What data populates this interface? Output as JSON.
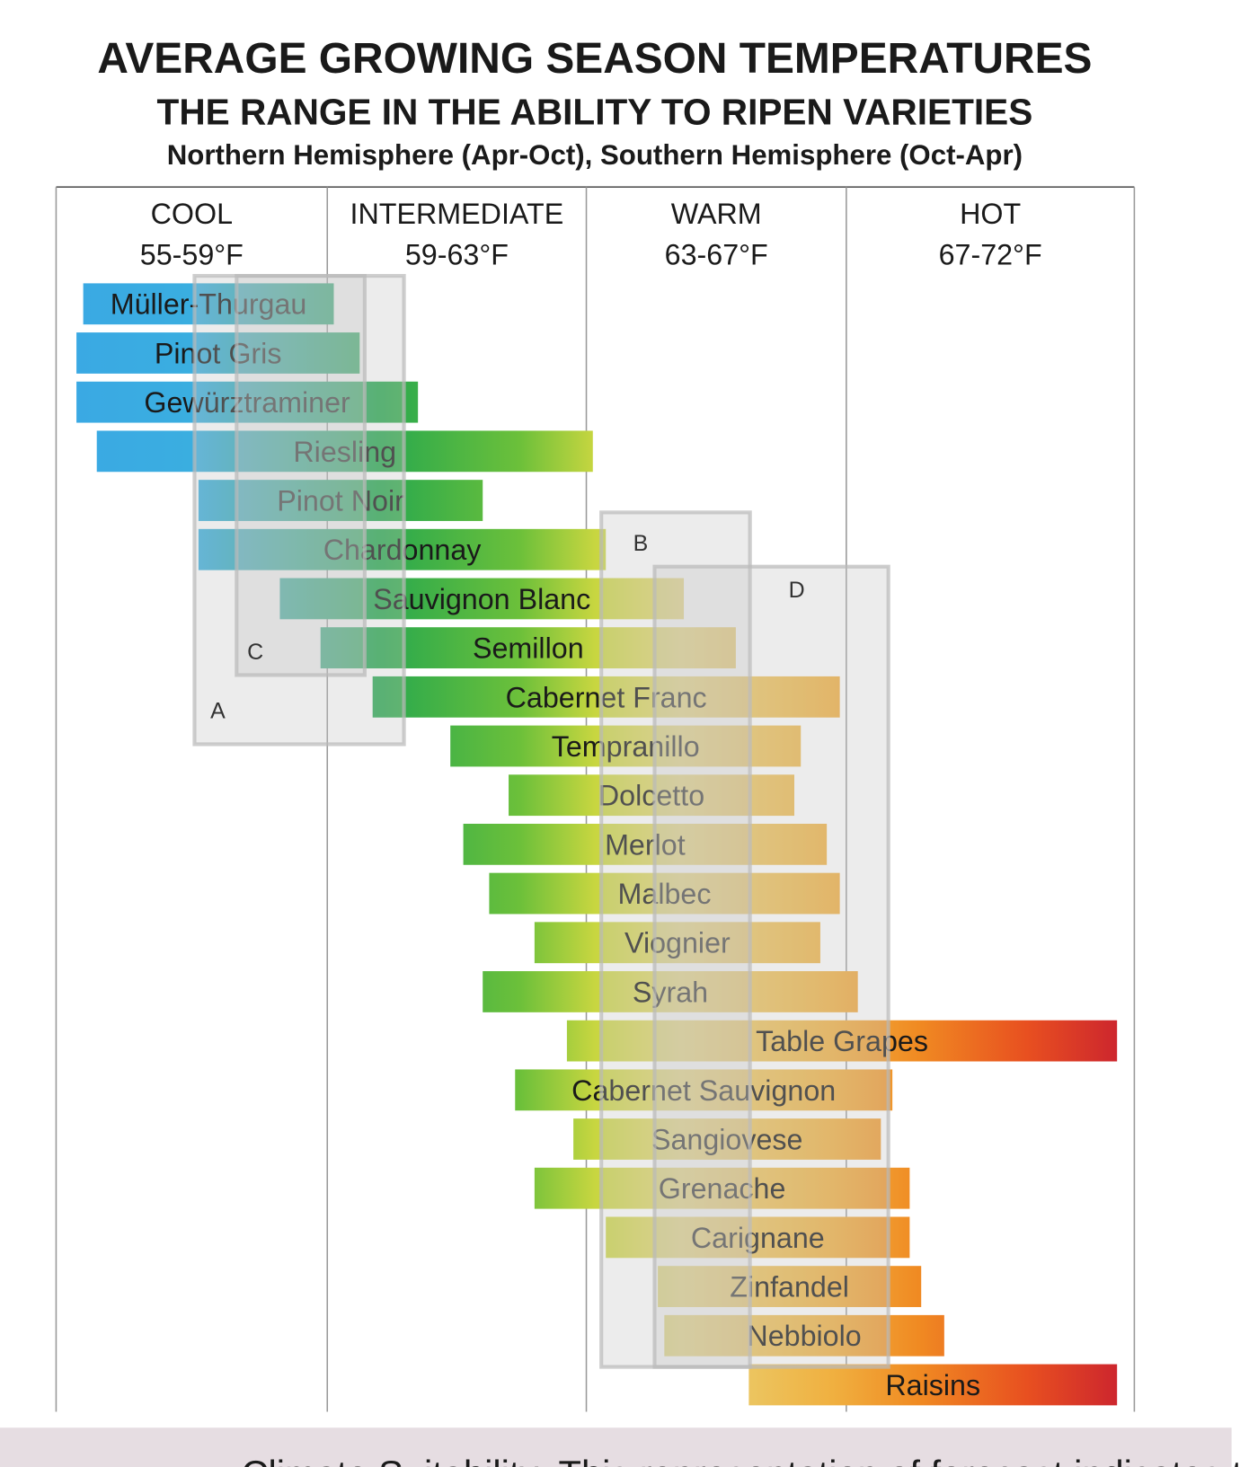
{
  "chart_data": {
    "type": "range_bar",
    "title": "AVERAGE GROWING SEASON TEMPERATURES",
    "subtitle": "THE RANGE IN THE ABILITY TO RIPEN VARIETIES",
    "note": "Northern Hemisphere (Apr-Oct), Southern Hemisphere (Oct-Apr)",
    "zones": [
      {
        "name": "COOL",
        "range": "55-59°F",
        "min": 55,
        "max": 59
      },
      {
        "name": "INTERMEDIATE",
        "range": "59-63°F",
        "min": 59,
        "max": 63
      },
      {
        "name": "WARM",
        "range": "63-67°F",
        "min": 63,
        "max": 67
      },
      {
        "name": "HOT",
        "range": "67-72°F",
        "min": 67,
        "max": 72
      }
    ],
    "bars": [
      {
        "name": "Müller-Thurgau",
        "low": 55.4,
        "high": 59.1
      },
      {
        "name": "Pinot Gris",
        "low": 55.3,
        "high": 59.5
      },
      {
        "name": "Gewürztraminer",
        "low": 55.3,
        "high": 60.4
      },
      {
        "name": "Riesling",
        "low": 55.6,
        "high": 63.1
      },
      {
        "name": "Pinot Noir",
        "low": 57.1,
        "high": 61.4
      },
      {
        "name": "Chardonnay",
        "low": 57.1,
        "high": 63.3
      },
      {
        "name": "Sauvignon Blanc",
        "low": 58.3,
        "high": 64.5
      },
      {
        "name": "Semillon",
        "low": 58.9,
        "high": 65.3
      },
      {
        "name": "Cabernet Franc",
        "low": 59.7,
        "high": 66.9
      },
      {
        "name": "Tempranillo",
        "low": 60.9,
        "high": 66.3
      },
      {
        "name": "Dolcetto",
        "low": 61.8,
        "high": 66.2
      },
      {
        "name": "Merlot",
        "low": 61.1,
        "high": 66.7
      },
      {
        "name": "Malbec",
        "low": 61.5,
        "high": 66.9
      },
      {
        "name": "Viognier",
        "low": 62.2,
        "high": 66.6
      },
      {
        "name": "Syrah",
        "low": 61.4,
        "high": 67.2
      },
      {
        "name": "Table Grapes",
        "low": 62.7,
        "high": 71.7
      },
      {
        "name": "Cabernet Sauvignon",
        "low": 61.9,
        "high": 67.8
      },
      {
        "name": "Sangiovese",
        "low": 62.8,
        "high": 67.6
      },
      {
        "name": "Grenache",
        "low": 62.2,
        "high": 68.1
      },
      {
        "name": "Carignane",
        "low": 63.3,
        "high": 68.1
      },
      {
        "name": "Zinfandel",
        "low": 64.1,
        "high": 68.3
      },
      {
        "name": "Nebbiolo",
        "low": 64.2,
        "high": 68.7
      },
      {
        "name": "Raisins",
        "low": 65.5,
        "high": 71.7
      }
    ],
    "overlays": [
      "A",
      "B",
      "C",
      "D"
    ],
    "footer": "Climate Suitability: This representation of forecast indicates the"
  }
}
